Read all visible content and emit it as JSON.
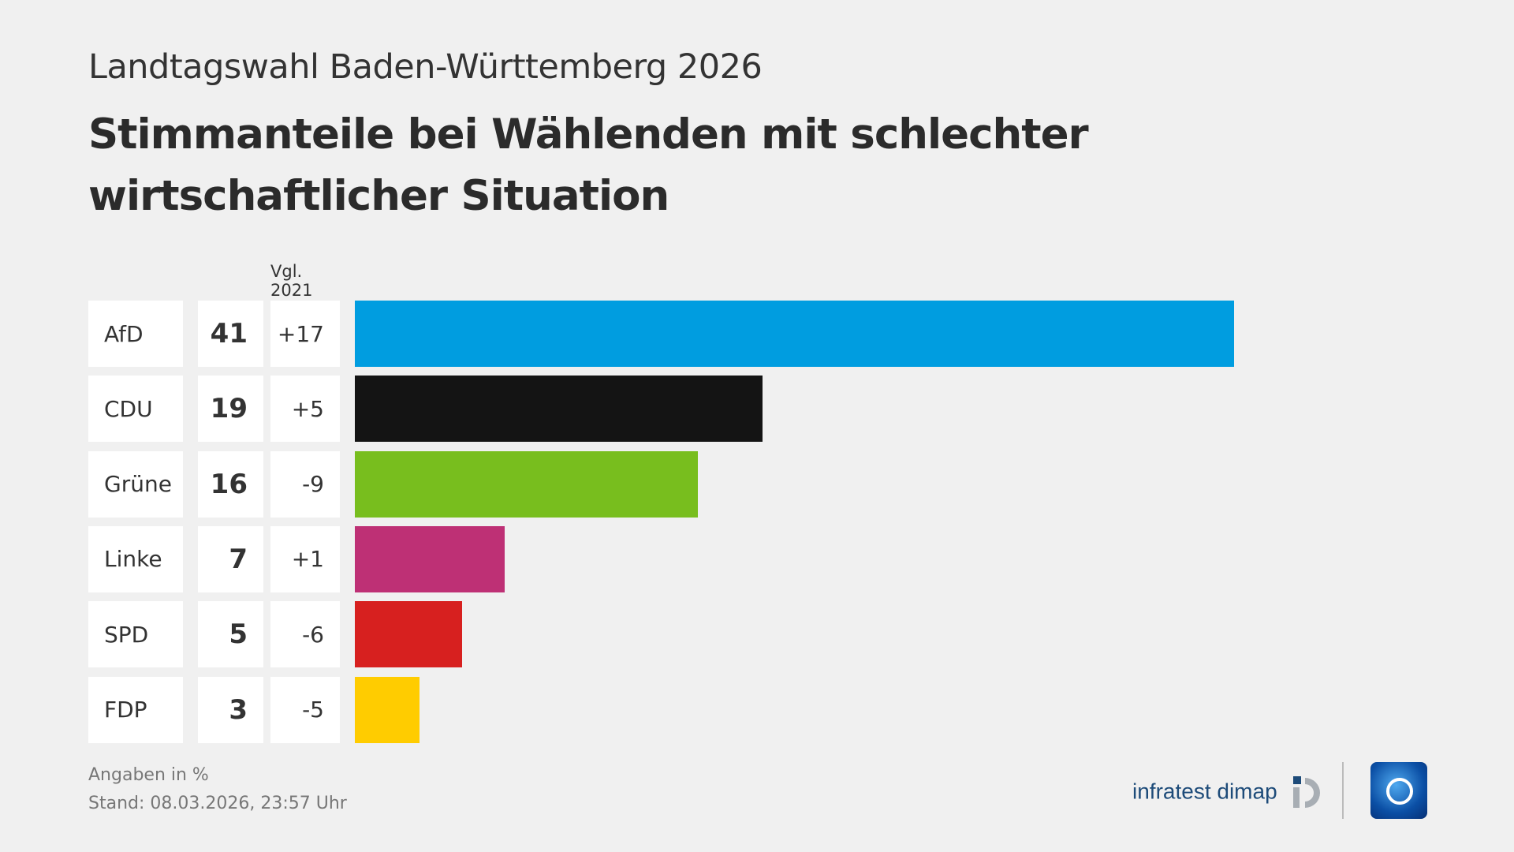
{
  "header": {
    "subtitle": "Landtagswahl Baden-Württemberg 2026",
    "title": "Stimmanteile bei Wählenden mit schlechter wirtschaftlicher Situation"
  },
  "chart_data": {
    "type": "bar",
    "orientation": "horizontal",
    "comparison_label": "Vgl. 2021",
    "categories": [
      "AfD",
      "CDU",
      "Grüne",
      "Linke",
      "SPD",
      "FDP"
    ],
    "values": [
      41,
      19,
      16,
      7,
      5,
      3
    ],
    "diff_labels": [
      "+17",
      "+5",
      "-9",
      "+1",
      "-6",
      "-5"
    ],
    "colors": [
      "#009de0",
      "#141414",
      "#78be1e",
      "#be3075",
      "#d7201f",
      "#ffcc00"
    ],
    "unit": "%"
  },
  "footer": {
    "note": "Angaben in %",
    "stand": "Stand:  08.03.2026, 23:57 Uhr"
  },
  "logos": {
    "infratest": "infratest dimap",
    "ard": "1"
  }
}
